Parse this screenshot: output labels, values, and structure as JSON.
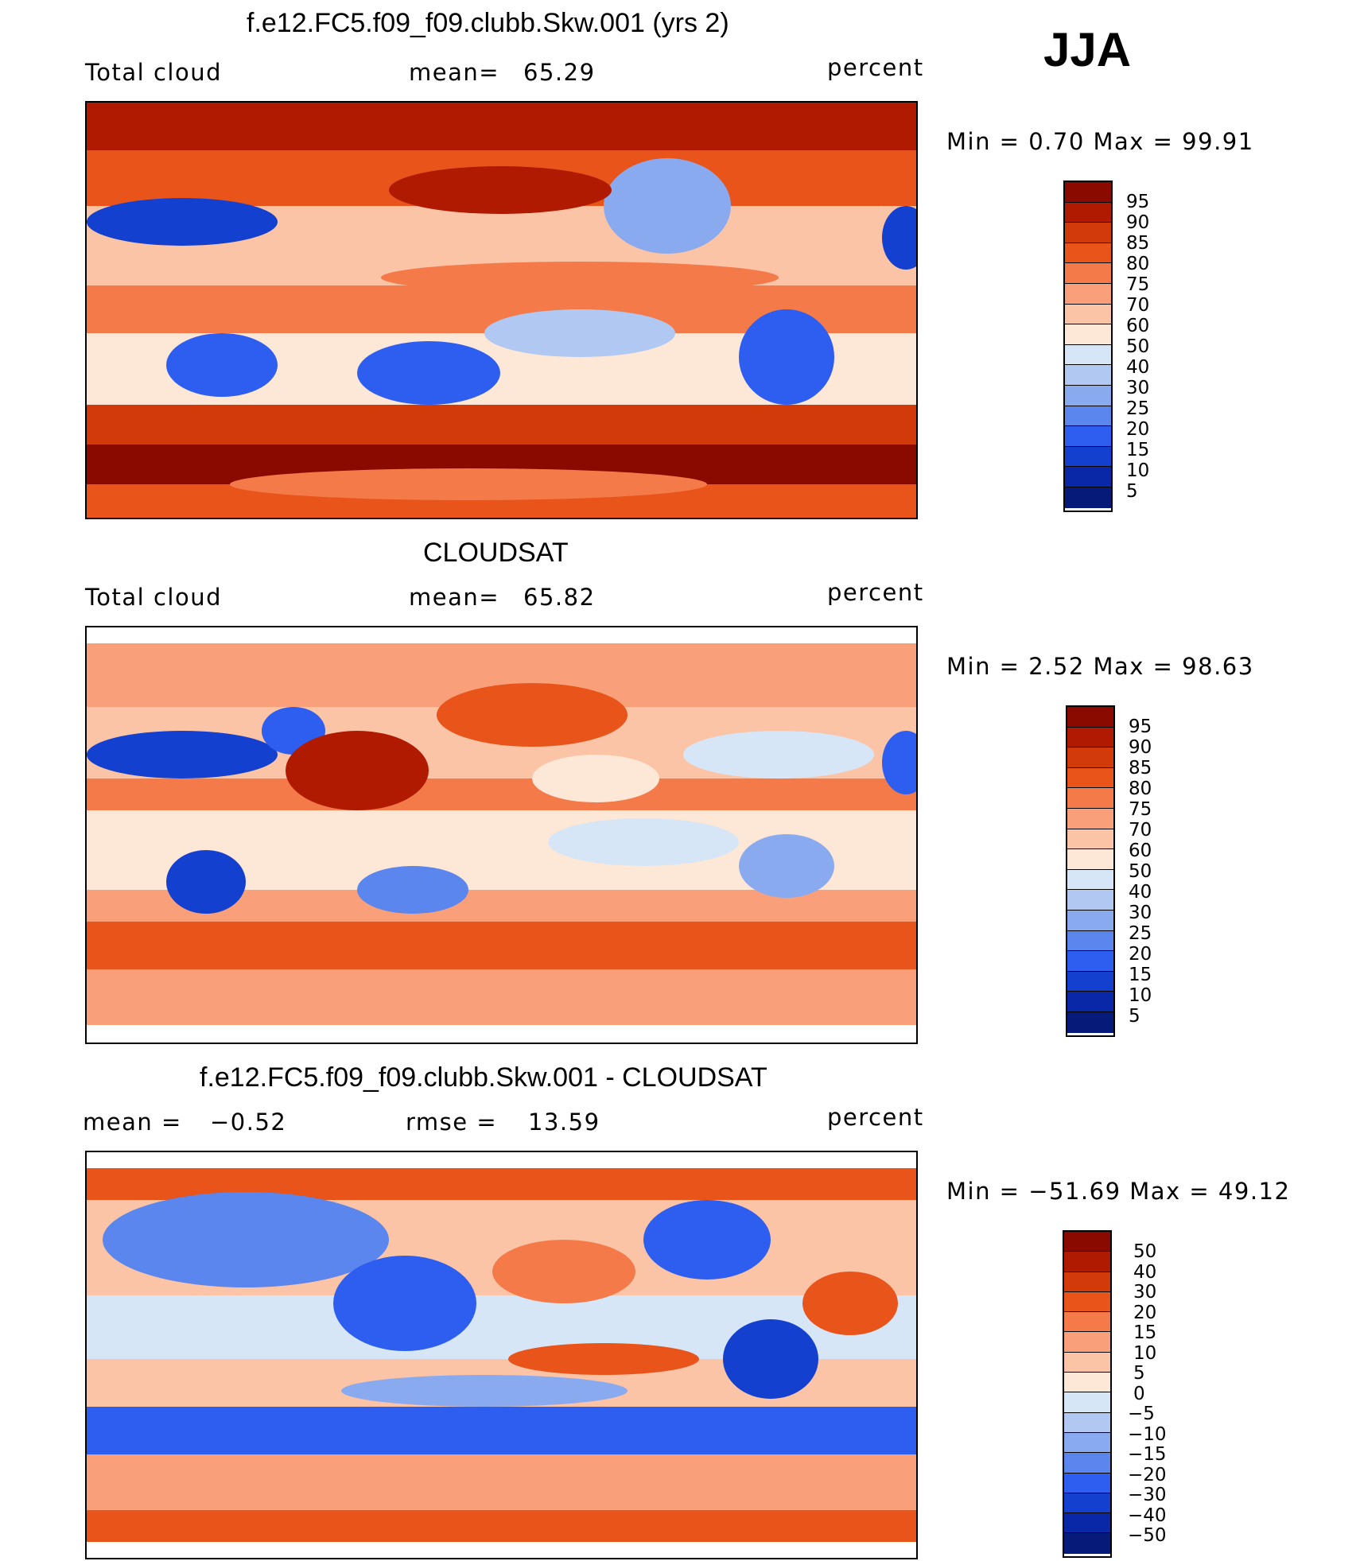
{
  "season": "JJA",
  "panels": [
    {
      "title": "f.e12.FC5.f09_f09.clubb.Skw.001 (yrs 2)",
      "left_label": "Total cloud",
      "stat1_label": "mean=",
      "stat1_value": "65.29",
      "units": "percent",
      "range_text": "Min =    0.70  Max =   99.91",
      "min": 0.7,
      "max": 99.91,
      "levels": [
        "95",
        "90",
        "85",
        "80",
        "75",
        "70",
        "60",
        "50",
        "40",
        "30",
        "25",
        "20",
        "15",
        "10",
        "5"
      ],
      "colors": [
        "#8b0a00",
        "#b01a00",
        "#d23a0a",
        "#e8541a",
        "#f47a4a",
        "#f9a07a",
        "#fcc4a6",
        "#fde7d6",
        "#d7e6f7",
        "#b0c8f2",
        "#8aaaf0",
        "#5a86ee",
        "#2e5ef0",
        "#1440d0",
        "#0828a8",
        "#061a7a"
      ]
    },
    {
      "title": "CLOUDSAT",
      "left_label": "Total cloud",
      "stat1_label": "mean=",
      "stat1_value": "65.82",
      "units": "percent",
      "range_text": "Min =    2.52  Max =   98.63",
      "min": 2.52,
      "max": 98.63,
      "levels": [
        "95",
        "90",
        "85",
        "80",
        "75",
        "70",
        "60",
        "50",
        "40",
        "30",
        "25",
        "20",
        "15",
        "10",
        "5"
      ],
      "colors": [
        "#8b0a00",
        "#b01a00",
        "#d23a0a",
        "#e8541a",
        "#f47a4a",
        "#f9a07a",
        "#fcc4a6",
        "#fde7d6",
        "#d7e6f7",
        "#b0c8f2",
        "#8aaaf0",
        "#5a86ee",
        "#2e5ef0",
        "#1440d0",
        "#0828a8",
        "#061a7a"
      ]
    },
    {
      "title": "f.e12.FC5.f09_f09.clubb.Skw.001 - CLOUDSAT",
      "left_label": "mean =",
      "left_value": "−0.52",
      "stat1_label": "rmse =",
      "stat1_value": "13.59",
      "units": "percent",
      "range_text": "Min = −51.69  Max =   49.12",
      "min": -51.69,
      "max": 49.12,
      "levels": [
        "50",
        "40",
        "30",
        "20",
        "15",
        "10",
        "5",
        "0",
        "−5",
        "−10",
        "−15",
        "−20",
        "−30",
        "−40",
        "−50"
      ],
      "colors": [
        "#8b0a00",
        "#b01a00",
        "#d23a0a",
        "#e8541a",
        "#f47a4a",
        "#f9a07a",
        "#fcc4a6",
        "#fde7d6",
        "#d7e6f7",
        "#b0c8f2",
        "#8aaaf0",
        "#5a86ee",
        "#2e5ef0",
        "#1440d0",
        "#0828a8",
        "#061a7a"
      ]
    }
  ]
}
